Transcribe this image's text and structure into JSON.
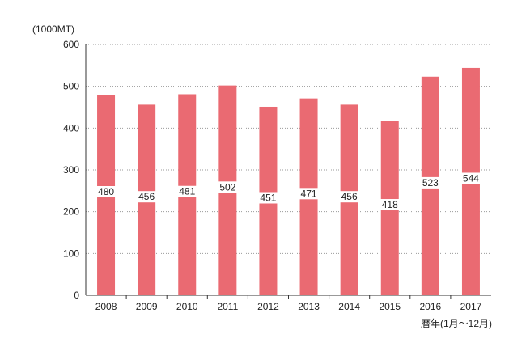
{
  "chart_data": {
    "type": "bar",
    "title": "",
    "ylabel": "(1000MT)",
    "xlabel": "暦年(1月〜12月)",
    "categories": [
      "2008",
      "2009",
      "2010",
      "2011",
      "2012",
      "2013",
      "2014",
      "2015",
      "2016",
      "2017"
    ],
    "values": [
      480,
      456,
      481,
      502,
      451,
      471,
      456,
      418,
      523,
      544
    ],
    "data_labels": [
      "480",
      "456",
      "481",
      "502",
      "451",
      "471",
      "456",
      "418",
      "523",
      "544"
    ],
    "ylim": [
      0,
      600
    ],
    "yticks": [
      0,
      100,
      200,
      300,
      400,
      500,
      600
    ],
    "ytick_labels": [
      "0",
      "100",
      "200",
      "300",
      "400",
      "500",
      "600"
    ],
    "grid": true,
    "grid_style": "dotted",
    "bar_color": "#ea6a72",
    "legend": "none"
  }
}
